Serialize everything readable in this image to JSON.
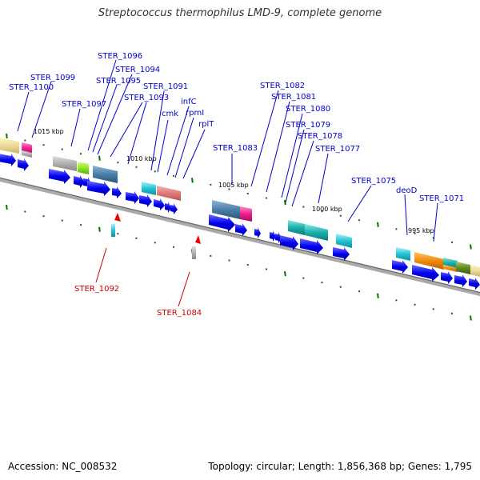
{
  "title": "Streptococcus thermophilus LMD-9, complete genome",
  "footer": {
    "accession": "Accession: NC_008532",
    "topology": "Topology: circular; Length: 1,856,368 bp; Genes: 1,795"
  },
  "colors": {
    "backbone": "#888888",
    "cds_arrow": "#0000ee",
    "forward_label": "#0000cc",
    "reverse_label": "#cc0000",
    "tick": "#007700"
  },
  "scale_labels": [
    "1015 kbp",
    "1010 kbp",
    "1005 kbp",
    "1000 kbp",
    "995 kbp"
  ],
  "forward_genes": [
    "STER_1100",
    "STER_1099",
    "STER_1097",
    "STER_1096",
    "STER_1095",
    "STER_1094",
    "STER_1093",
    "STER_1091",
    "cmk",
    "infC",
    "rpmI",
    "rplT",
    "STER_1083",
    "STER_1082",
    "STER_1081",
    "STER_1080",
    "STER_1079",
    "STER_1078",
    "STER_1077",
    "STER_1075",
    "deoD",
    "STER_1071"
  ],
  "reverse_genes": [
    "STER_1092",
    "STER_1084"
  ]
}
